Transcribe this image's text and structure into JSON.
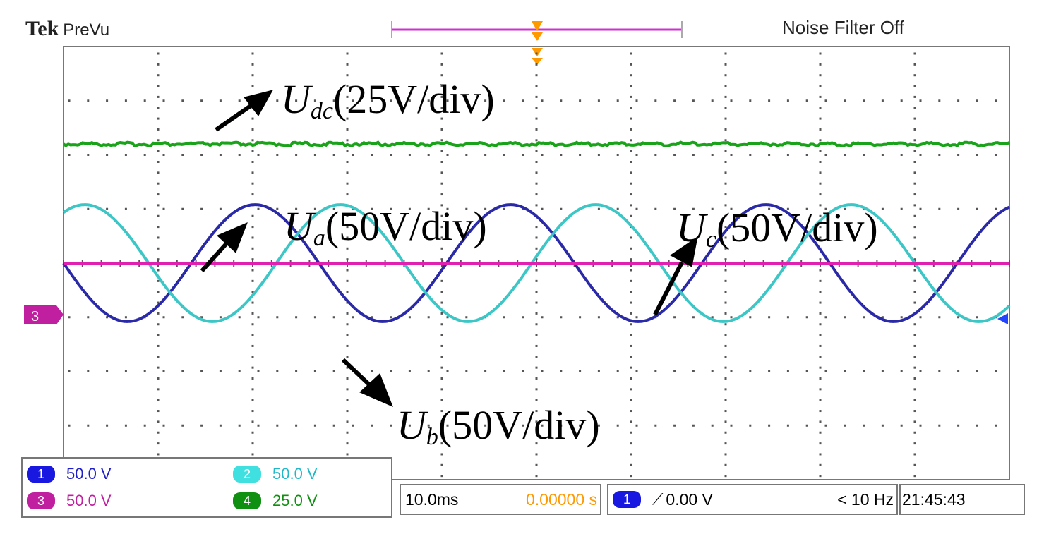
{
  "header": {
    "brand": "Tek",
    "mode": "PreVu",
    "noise_filter": "Noise Filter Off"
  },
  "chart_data": {
    "type": "line",
    "title": "",
    "grid": true,
    "x_divisions": 10,
    "y_divisions": 8,
    "time_per_div": "10.0ms",
    "annotations": [
      {
        "name": "Udc",
        "letter": "U",
        "subscript": "dc",
        "scale": "(25V/div)"
      },
      {
        "name": "Ua",
        "letter": "U",
        "subscript": "a",
        "scale": "(50V/div)"
      },
      {
        "name": "Uc",
        "letter": "U",
        "subscript": "c",
        "scale": "(50V/div)"
      },
      {
        "name": "Ub",
        "letter": "U",
        "subscript": "b",
        "scale": "(50V/div)"
      }
    ],
    "series": [
      {
        "channel": 4,
        "color": "#1aa31a",
        "kind": "dc",
        "level_div": 2.2
      },
      {
        "channel": 1,
        "color": "#2a2aa8",
        "kind": "sine",
        "amplitude_div": 1.08,
        "period_div": 2.7,
        "phase_deg": 180
      },
      {
        "channel": 2,
        "color": "#3cc6c6",
        "kind": "sine",
        "amplitude_div": 1.08,
        "period_div": 2.7,
        "phase_deg": 60
      },
      {
        "channel": 3,
        "color": "#e020b0",
        "kind": "dc",
        "level_div": 0
      }
    ],
    "reference_marker": "3"
  },
  "channels": [
    {
      "num": "1",
      "scale": "50.0 V",
      "badge_color": "#1818e0",
      "text_color": "#2020c8"
    },
    {
      "num": "2",
      "scale": "50.0 V",
      "badge_color": "#40e0e0",
      "text_color": "#20b8c8"
    },
    {
      "num": "3",
      "scale": "50.0 V",
      "badge_color": "#c020a0",
      "text_color": "#c020a0"
    },
    {
      "num": "4",
      "scale": "25.0 V",
      "badge_color": "#109010",
      "text_color": "#109010"
    }
  ],
  "bottom": {
    "timebase": "10.0ms",
    "position": "0.00000 s",
    "trigger_channel": "1",
    "trigger_level": "0.00 V",
    "trigger_freq": "< 10 Hz",
    "clock": "21:45:43"
  },
  "colors": {
    "grid_dot": "#555555",
    "border": "#777777",
    "position_accent": "#ff9900",
    "trigger_bar": "#cc33cc"
  }
}
